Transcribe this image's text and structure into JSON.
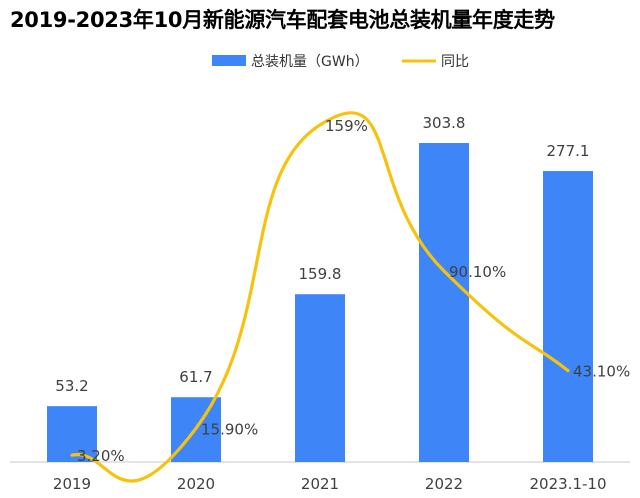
{
  "chart_data": {
    "type": "bar",
    "title": "2019-2023年10月新能源汽车配套电池总装机量年度走势",
    "categories": [
      "2019",
      "2020",
      "2021",
      "2022",
      "2023.1-10"
    ],
    "series": [
      {
        "name": "总装机量（GWh）",
        "type": "bar",
        "values": [
          53.2,
          61.7,
          159.8,
          303.8,
          277.1
        ],
        "labels": [
          "53.2",
          "61.7",
          "159.8",
          "303.8",
          "277.1"
        ],
        "color": "#3e85f8"
      },
      {
        "name": "同比",
        "type": "line",
        "smooth": true,
        "values": [
          3.2,
          15.9,
          159,
          90.1,
          43.1
        ],
        "labels": [
          "3.20%",
          "15.90%",
          "159%",
          "90.10%",
          "43.10%"
        ],
        "color": "#f7c20d"
      }
    ],
    "ylim": [
      0,
      335
    ],
    "y2lim": [
      0,
      167
    ],
    "grid": false,
    "legend_position": "top-center"
  }
}
